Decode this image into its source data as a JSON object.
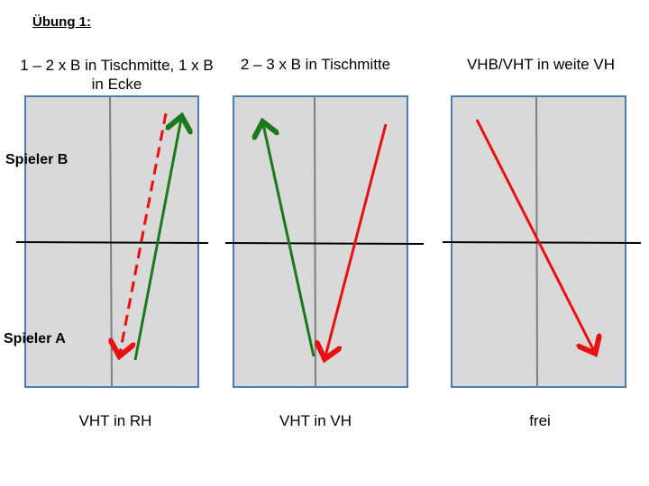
{
  "header": {
    "title": "Übung 1:"
  },
  "labels": {
    "player_b": "Spieler B",
    "player_a": "Spieler A"
  },
  "tables": [
    {
      "title": "1 – 2 x B in Tischmitte, 1 x B in Ecke",
      "caption": "VHT in RH"
    },
    {
      "title": "2 – 3 x B in Tischmitte",
      "caption": "VHT in VH"
    },
    {
      "title": "VHB/VHT in weite VH",
      "caption": "frei"
    }
  ]
}
